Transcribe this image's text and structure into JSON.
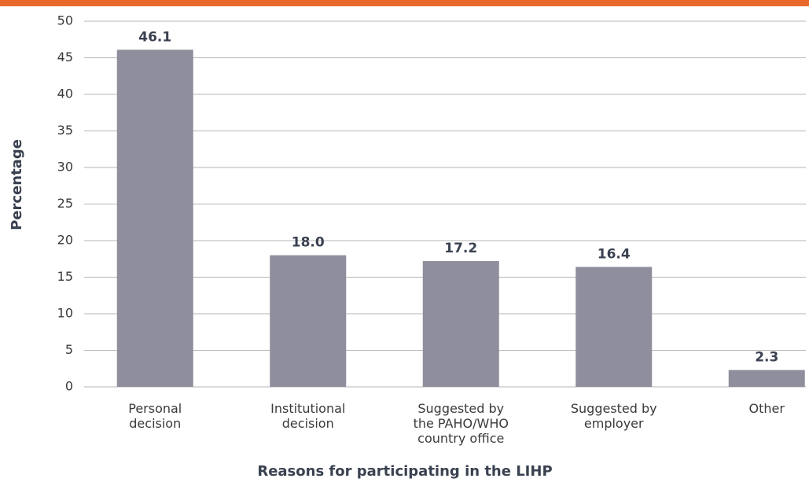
{
  "chart_data": {
    "type": "bar",
    "x_label": "Reasons for participating in the LIHP",
    "y_label": "Percentage",
    "categories": [
      "Personal\ndecision",
      "Institutional\ndecision",
      "Suggested by\nthe PAHO/WHO\ncountry office",
      "Suggested by\nemployer",
      "Other"
    ],
    "values": [
      46.1,
      18.0,
      17.2,
      16.4,
      2.3
    ],
    "value_labels": [
      "46.1",
      "18.0",
      "17.2",
      "16.4",
      "2.3"
    ],
    "color": "#8e8e9c",
    "ylim": [
      0,
      50
    ],
    "yticks": [
      0,
      5,
      10,
      15,
      20,
      25,
      30,
      35,
      40,
      45,
      50
    ],
    "grid": true
  }
}
